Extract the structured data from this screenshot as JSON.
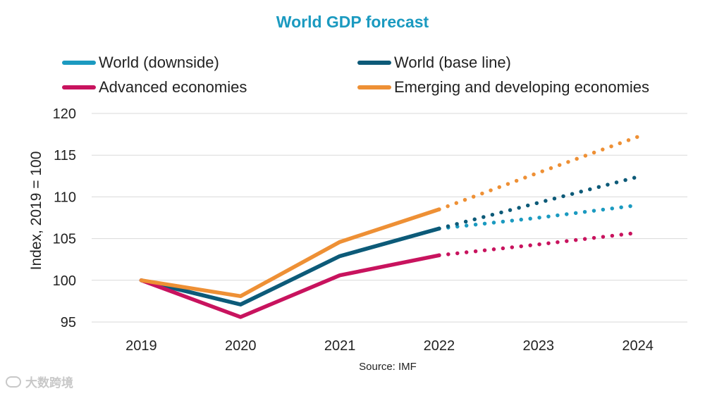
{
  "chart_data": {
    "type": "line",
    "title": "World GDP forecast",
    "ylabel": "Index, 2019 = 100",
    "xlabel": "",
    "categories": [
      "2019",
      "2020",
      "2021",
      "2022",
      "2023",
      "2024"
    ],
    "yticks": [
      95,
      100,
      105,
      110,
      115,
      120
    ],
    "ylim": [
      95,
      120
    ],
    "grid": true,
    "forecast_start": "2022",
    "legend_position": "top",
    "series": [
      {
        "name": "World (downside)",
        "color": "#1b9ac0",
        "values": [
          100,
          97.1,
          102.9,
          106.2,
          107.5,
          109.0
        ]
      },
      {
        "name": "World (base line)",
        "color": "#0d5a78",
        "values": [
          100,
          97.1,
          102.9,
          106.2,
          109.3,
          112.4
        ]
      },
      {
        "name": "Advanced economies",
        "color": "#c8135e",
        "values": [
          100,
          95.6,
          100.6,
          103.0,
          104.3,
          105.7
        ]
      },
      {
        "name": "Emerging and developing economies",
        "color": "#ee9035",
        "values": [
          100,
          98.1,
          104.6,
          108.5,
          112.9,
          117.2
        ]
      }
    ]
  },
  "source": "Source: IMF",
  "watermark": "大数跨境"
}
